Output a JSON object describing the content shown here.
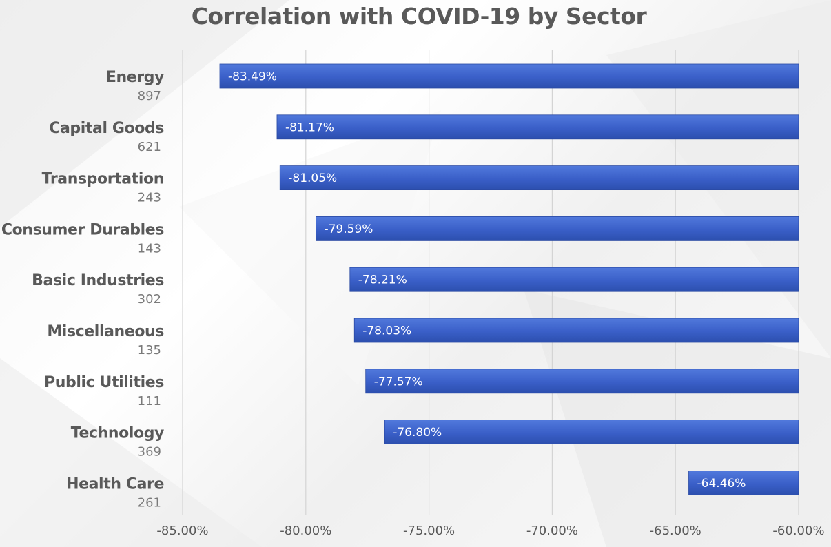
{
  "chart_data": {
    "type": "bar",
    "orientation": "horizontal",
    "title": "Correlation with COVID-19 by Sector",
    "categories": [
      "Energy",
      "Capital Goods",
      "Transportation",
      "Consumer Durables",
      "Basic Industries",
      "Miscellaneous",
      "Public Utilities",
      "Technology",
      "Health Care"
    ],
    "counts": [
      "897",
      "621",
      "243",
      "143",
      "302",
      "135",
      "111",
      "369",
      "261"
    ],
    "values": [
      -83.49,
      -81.17,
      -81.05,
      -79.59,
      -78.21,
      -78.03,
      -77.57,
      -76.8,
      -64.46
    ],
    "value_labels": [
      "-83.49%",
      "-81.17%",
      "-81.05%",
      "-79.59%",
      "-78.21%",
      "-78.03%",
      "-77.57%",
      "-76.80%",
      "-64.46%"
    ],
    "xlim": [
      -85,
      -60
    ],
    "x_ticks": [
      -85,
      -80,
      -75,
      -70,
      -65,
      -60
    ],
    "x_tick_labels": [
      "-85.00%",
      "-80.00%",
      "-75.00%",
      "-70.00%",
      "-65.00%",
      "-60.00%"
    ],
    "xlabel": "",
    "ylabel": "",
    "grid": "vertical",
    "legend": "none",
    "bar_color": "#3a5fc8"
  }
}
